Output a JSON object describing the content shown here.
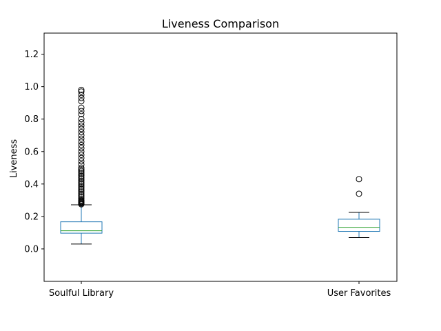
{
  "chart_data": {
    "type": "box",
    "title": "Liveness Comparison",
    "xlabel": "",
    "ylabel": "Liveness",
    "ylim": [
      -0.2,
      1.33
    ],
    "yticks": [
      0.0,
      0.2,
      0.4,
      0.6,
      0.8,
      1.0,
      1.2
    ],
    "grid": false,
    "colors": {
      "box": "#1f77b4",
      "median": "#2ca02c",
      "whisker": "#1f77b4",
      "cap": "#000000",
      "flier": "#000000"
    },
    "categories": [
      "Soulful Library",
      "User Favorites"
    ],
    "boxes": [
      {
        "name": "Soulful Library",
        "whisker_low": 0.03,
        "q1": 0.097,
        "median": 0.112,
        "q3": 0.167,
        "whisker_high": 0.272,
        "fliers": [
          0.275,
          0.28,
          0.285,
          0.29,
          0.295,
          0.3,
          0.31,
          0.32,
          0.33,
          0.34,
          0.35,
          0.36,
          0.37,
          0.38,
          0.39,
          0.4,
          0.41,
          0.42,
          0.43,
          0.44,
          0.45,
          0.46,
          0.47,
          0.48,
          0.49,
          0.5,
          0.52,
          0.54,
          0.56,
          0.58,
          0.6,
          0.62,
          0.64,
          0.66,
          0.68,
          0.7,
          0.72,
          0.74,
          0.76,
          0.78,
          0.8,
          0.83,
          0.85,
          0.87,
          0.91,
          0.93,
          0.95,
          0.97,
          0.98
        ]
      },
      {
        "name": "User Favorites",
        "whisker_low": 0.07,
        "q1": 0.108,
        "median": 0.133,
        "q3": 0.183,
        "whisker_high": 0.225,
        "fliers": [
          0.34,
          0.43
        ]
      }
    ]
  }
}
